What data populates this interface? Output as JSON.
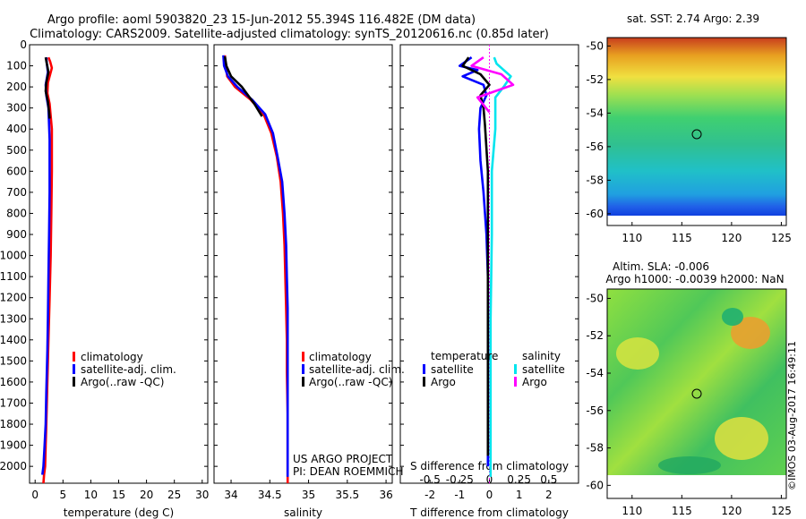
{
  "title_line1": "Argo profile: aoml 5903820_23 15-Jun-2012 55.394S 116.482E (DM data)",
  "title_line2": "Climatology: CARS2009. Satellite-adjusted climatology: synTS_20120616.nc (0.85d later)",
  "copyright": "©IMOS 03-Aug-2017 16:49:11",
  "credit_line1": "US ARGO PROJECT",
  "credit_line2": "PI: DEAN ROEMMICH",
  "legend_common": [
    {
      "label": "climatology",
      "color": "#ff0000"
    },
    {
      "label": "satellite-adj. clim.",
      "color": "#0000ff"
    },
    {
      "label": "Argo(..raw -QC)",
      "color": "#000000"
    }
  ],
  "legend_diff": {
    "temperature_title": "temperature",
    "salinity_title": "salinity",
    "temp_items": [
      {
        "label": "satellite",
        "color": "#0000ff"
      },
      {
        "label": "Argo",
        "color": "#000000"
      }
    ],
    "sal_items": [
      {
        "label": "satellite",
        "color": "#00e5ee"
      },
      {
        "label": "Argo",
        "color": "#ff00ff"
      }
    ]
  },
  "map_sst_title": "sat. SST: 2.74 Argo: 2.39",
  "map_sla_title1": "Altim. SLA: -0.006",
  "map_sla_title2": "Argo h1000: -0.0039 h2000: NaN",
  "chart_data": [
    {
      "type": "line",
      "name": "temperature",
      "xlabel": "temperature (deg C)",
      "ylabel": "",
      "xlim": [
        -1,
        31
      ],
      "ylim": [
        2080,
        0
      ],
      "xticks": [
        0,
        5,
        10,
        15,
        20,
        25,
        30
      ],
      "yticks": [
        0,
        100,
        200,
        300,
        400,
        500,
        600,
        700,
        800,
        900,
        1000,
        1100,
        1200,
        1300,
        1400,
        1500,
        1600,
        1700,
        1800,
        1900,
        2000
      ],
      "series": [
        {
          "name": "climatology",
          "color": "#ff0000",
          "x": [
            2.4,
            2.7,
            3.0,
            2.3,
            2.2,
            2.6,
            3.0,
            3.0,
            2.9,
            2.8,
            2.6,
            2.4,
            2.3,
            2.2,
            2.1,
            2.0,
            1.9,
            1.8,
            1.6,
            1.5
          ],
          "y": [
            60,
            80,
            110,
            180,
            230,
            280,
            400,
            600,
            800,
            1000,
            1200,
            1400,
            1500,
            1600,
            1700,
            1800,
            1900,
            2000,
            2040,
            2080
          ]
        },
        {
          "name": "satellite-adj. clim.",
          "color": "#0000ff",
          "x": [
            2.0,
            2.1,
            2.3,
            1.9,
            2.0,
            2.4,
            2.6,
            2.6,
            2.5,
            2.4,
            2.3,
            2.2,
            2.1,
            2.0,
            1.9,
            1.7,
            1.5,
            1.3
          ],
          "y": [
            60,
            90,
            130,
            190,
            240,
            300,
            450,
            700,
            900,
            1100,
            1300,
            1450,
            1550,
            1650,
            1800,
            1900,
            2000,
            2040
          ]
        },
        {
          "name": "Argo(..raw -QC)",
          "color": "#000000",
          "x": [
            1.9,
            2.1,
            2.4,
            2.0,
            1.9,
            2.3,
            2.5,
            2.6
          ],
          "y": [
            60,
            90,
            130,
            180,
            220,
            270,
            320,
            350
          ]
        }
      ]
    },
    {
      "type": "line",
      "name": "salinity",
      "xlabel": "salinity",
      "ylabel": "",
      "xlim": [
        33.78,
        36.08
      ],
      "ylim": [
        2080,
        0
      ],
      "xticks": [
        34,
        34.5,
        35,
        35.5,
        36
      ],
      "series": [
        {
          "name": "climatology",
          "color": "#ff0000",
          "x": [
            33.92,
            33.93,
            33.95,
            34.05,
            34.25,
            34.42,
            34.52,
            34.59,
            34.64,
            34.67,
            34.69,
            34.7,
            34.71,
            34.72,
            34.72,
            34.73,
            34.73,
            34.73
          ],
          "y": [
            50,
            100,
            150,
            200,
            260,
            330,
            420,
            530,
            650,
            800,
            950,
            1100,
            1250,
            1400,
            1550,
            1750,
            1950,
            2080
          ]
        },
        {
          "name": "satellite-adj. clim.",
          "color": "#0000ff",
          "x": [
            33.9,
            33.91,
            33.96,
            34.08,
            34.27,
            34.44,
            34.54,
            34.6,
            34.66,
            34.69,
            34.71,
            34.72,
            34.73,
            34.73,
            34.73,
            34.73,
            34.73,
            34.73
          ],
          "y": [
            50,
            100,
            150,
            200,
            260,
            330,
            420,
            530,
            650,
            800,
            950,
            1100,
            1250,
            1400,
            1550,
            1750,
            1950,
            2050
          ]
        },
        {
          "name": "Argo(..raw -QC)",
          "color": "#000000",
          "x": [
            33.92,
            33.94,
            34.0,
            34.14,
            34.3,
            34.4
          ],
          "y": [
            55,
            100,
            150,
            200,
            280,
            340
          ]
        }
      ]
    },
    {
      "type": "line",
      "name": "difference from climatology",
      "xlabel": "T difference from climatology",
      "xlabel_top": "S difference from climatology",
      "xlim": [
        -3,
        3
      ],
      "ylim": [
        2080,
        0
      ],
      "xticks": [
        -2,
        -1,
        0,
        1,
        2
      ],
      "xticks_top": [
        -0.5,
        -0.25,
        0,
        0.25,
        0.5
      ],
      "xticks_top_labels": [
        "-0.5",
        "-0.25",
        "0",
        "0.25",
        "0.5"
      ],
      "zero_line_color": "#ff00ff",
      "series": [
        {
          "name": "temperature satellite",
          "color": "#0000ff",
          "x": [
            -0.6,
            -1.0,
            -0.4,
            -0.9,
            -0.2,
            -0.1,
            -0.3,
            -0.35,
            -0.3,
            -0.2,
            -0.1,
            -0.05,
            -0.05,
            -0.05,
            -0.05,
            -0.05
          ],
          "y": [
            60,
            100,
            120,
            150,
            190,
            240,
            300,
            400,
            550,
            700,
            900,
            1100,
            1300,
            1500,
            1700,
            2000
          ]
        },
        {
          "name": "temperature Argo",
          "color": "#000000",
          "x": [
            -0.7,
            -0.9,
            -0.3,
            0.0,
            -0.3,
            -0.2,
            -0.15,
            -0.05,
            -0.05,
            -0.05,
            -0.05
          ],
          "y": [
            60,
            100,
            140,
            190,
            240,
            300,
            380,
            600,
            1000,
            1500,
            1950
          ]
        },
        {
          "name": "salinity satellite",
          "color": "#00e5ee",
          "x": [
            0.04,
            0.06,
            0.18,
            0.12,
            0.05,
            0.05,
            0.05,
            0.02,
            0.02,
            0.01,
            0.01,
            0.01
          ],
          "y": [
            60,
            90,
            150,
            200,
            250,
            300,
            400,
            600,
            900,
            1300,
            1700,
            2050
          ]
        },
        {
          "name": "salinity Argo",
          "color": "#ff00ff",
          "x": [
            -0.05,
            -0.15,
            0.1,
            0.2,
            -0.1,
            0.0
          ],
          "y": [
            60,
            100,
            140,
            190,
            250,
            320
          ]
        }
      ]
    },
    {
      "type": "heatmap",
      "name": "satellite SST map",
      "title": "sat. SST: 2.74 Argo: 2.39",
      "xlim": [
        107.5,
        125.5
      ],
      "ylim": [
        -60.7,
        -49.5
      ],
      "data_ylim": [
        -60,
        -49.5
      ],
      "xticks": [
        110,
        115,
        120,
        125
      ],
      "yticks": [
        -50,
        -52,
        -54,
        -56,
        -58,
        -60
      ],
      "marker": {
        "lon": 116.48,
        "lat": -55.39
      }
    },
    {
      "type": "heatmap",
      "name": "altimetry SLA map",
      "title": "Altim. SLA: -0.006",
      "subtitle": "Argo h1000: -0.0039 h2000: NaN",
      "xlim": [
        107.5,
        125.5
      ],
      "ylim": [
        -60.7,
        -49.5
      ],
      "data_ylim": [
        -60,
        -49.5
      ],
      "xticks": [
        110,
        115,
        120,
        125
      ],
      "yticks": [
        -50,
        -52,
        -54,
        -56,
        -58,
        -60
      ],
      "marker": {
        "lon": 116.48,
        "lat": -55.39
      }
    }
  ]
}
